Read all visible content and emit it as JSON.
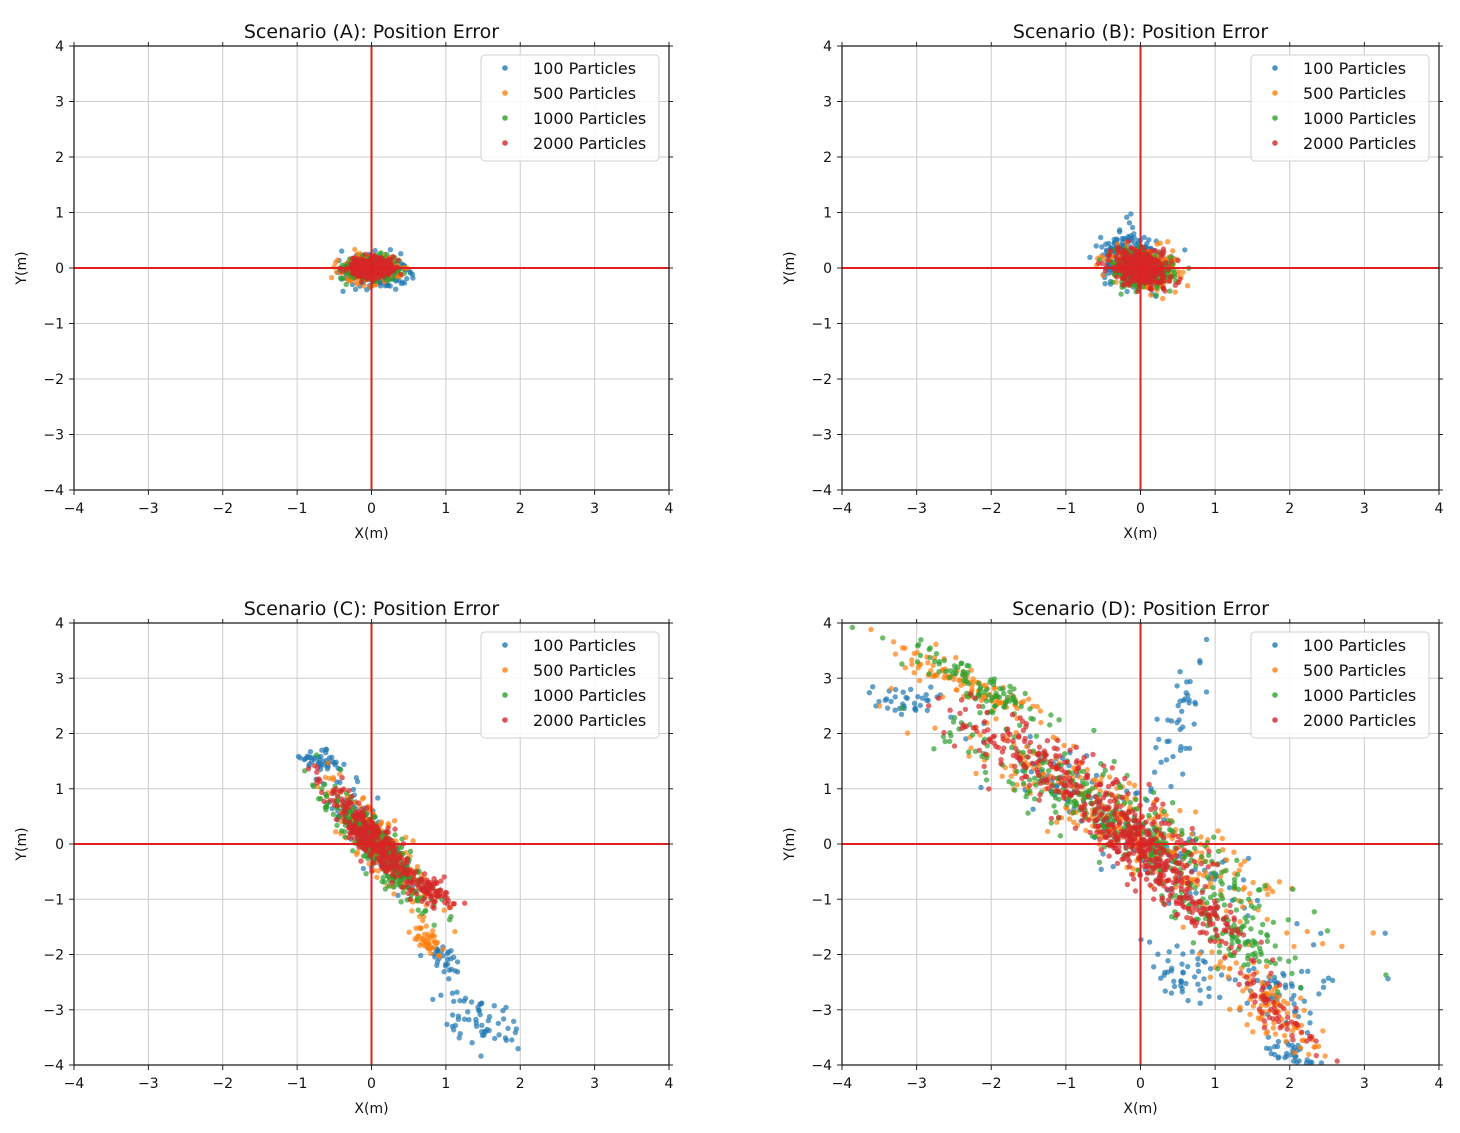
{
  "chart_data": [
    {
      "type": "scatter",
      "title": "Scenario (A): Position Error",
      "xlabel": "X(m)",
      "ylabel": "Y(m)",
      "xlim": [
        -4,
        4
      ],
      "ylim": [
        -4,
        4
      ],
      "ticks": [
        "−4",
        "−3",
        "−2",
        "−1",
        "0",
        "1",
        "2",
        "3",
        "4"
      ],
      "tick_values": [
        -4,
        -3,
        -2,
        -1,
        0,
        1,
        2,
        3,
        4
      ],
      "grid": true,
      "legend_position": "top-right",
      "reference_lines": {
        "x": 0,
        "y": 0,
        "color": "#e02020"
      },
      "series": [
        {
          "name": "100 Particles",
          "color": "#1f77b4",
          "n": 320,
          "clusters": [
            {
              "weight": 1,
              "mean": [
                0.02,
                -0.05
              ],
              "sd1": 0.2,
              "sd2": 0.13,
              "angle": 0
            }
          ]
        },
        {
          "name": "500 Particles",
          "color": "#ff7f0e",
          "n": 320,
          "clusters": [
            {
              "weight": 1,
              "mean": [
                0.0,
                0.0
              ],
              "sd1": 0.17,
              "sd2": 0.11,
              "angle": 0
            }
          ]
        },
        {
          "name": "1000 Particles",
          "color": "#2ca02c",
          "n": 320,
          "clusters": [
            {
              "weight": 1,
              "mean": [
                0.0,
                0.0
              ],
              "sd1": 0.16,
              "sd2": 0.1,
              "angle": 0
            }
          ]
        },
        {
          "name": "2000 Particles",
          "color": "#d62728",
          "n": 350,
          "clusters": [
            {
              "weight": 1,
              "mean": [
                0.0,
                0.0
              ],
              "sd1": 0.14,
              "sd2": 0.09,
              "angle": 0
            }
          ]
        }
      ]
    },
    {
      "type": "scatter",
      "title": "Scenario (B): Position Error",
      "xlabel": "X(m)",
      "ylabel": "Y(m)",
      "xlim": [
        -4,
        4
      ],
      "ylim": [
        -4,
        4
      ],
      "ticks": [
        "−4",
        "−3",
        "−2",
        "−1",
        "0",
        "1",
        "2",
        "3",
        "4"
      ],
      "tick_values": [
        -4,
        -3,
        -2,
        -1,
        0,
        1,
        2,
        3,
        4
      ],
      "grid": true,
      "legend_position": "top-right",
      "reference_lines": {
        "x": 0,
        "y": 0,
        "color": "#e02020"
      },
      "series": [
        {
          "name": "100 Particles",
          "color": "#1f77b4",
          "n": 300,
          "clusters": [
            {
              "weight": 1,
              "mean": [
                -0.1,
                0.15
              ],
              "sd1": 0.24,
              "sd2": 0.2,
              "angle": -40
            }
          ]
        },
        {
          "name": "500 Particles",
          "color": "#ff7f0e",
          "n": 300,
          "clusters": [
            {
              "weight": 1,
              "mean": [
                0.05,
                0.0
              ],
              "sd1": 0.22,
              "sd2": 0.17,
              "angle": -30
            }
          ]
        },
        {
          "name": "1000 Particles",
          "color": "#2ca02c",
          "n": 300,
          "clusters": [
            {
              "weight": 1,
              "mean": [
                0.0,
                -0.02
              ],
              "sd1": 0.2,
              "sd2": 0.16,
              "angle": -30
            }
          ]
        },
        {
          "name": "2000 Particles",
          "color": "#d62728",
          "n": 320,
          "clusters": [
            {
              "weight": 1,
              "mean": [
                0.0,
                0.0
              ],
              "sd1": 0.19,
              "sd2": 0.16,
              "angle": -40
            }
          ]
        }
      ]
    },
    {
      "type": "scatter",
      "title": "Scenario (C): Position Error",
      "xlabel": "X(m)",
      "ylabel": "Y(m)",
      "xlim": [
        -4,
        4
      ],
      "ylim": [
        -4,
        4
      ],
      "ticks": [
        "−4",
        "−3",
        "−2",
        "−1",
        "0",
        "1",
        "2",
        "3",
        "4"
      ],
      "tick_values": [
        -4,
        -3,
        -2,
        -1,
        0,
        1,
        2,
        3,
        4
      ],
      "grid": true,
      "legend_position": "top-right",
      "reference_lines": {
        "x": 0,
        "y": 0,
        "color": "#e02020"
      },
      "series": [
        {
          "name": "100 Particles",
          "color": "#1f77b4",
          "n": 300,
          "clusters": [
            {
              "weight": 0.55,
              "mean": [
                0.05,
                0.05
              ],
              "sd1": 0.55,
              "sd2": 0.12,
              "angle": -60
            },
            {
              "weight": 0.2,
              "mean": [
                1.45,
                -3.2
              ],
              "sd1": 0.33,
              "sd2": 0.22,
              "angle": -55
            },
            {
              "weight": 0.1,
              "mean": [
                0.95,
                -2.1
              ],
              "sd1": 0.2,
              "sd2": 0.1,
              "angle": -60
            },
            {
              "weight": 0.15,
              "mean": [
                -0.7,
                1.5
              ],
              "sd1": 0.17,
              "sd2": 0.09,
              "angle": -30
            }
          ]
        },
        {
          "name": "500 Particles",
          "color": "#ff7f0e",
          "n": 300,
          "clusters": [
            {
              "weight": 0.85,
              "mean": [
                0.1,
                0.0
              ],
              "sd1": 0.6,
              "sd2": 0.13,
              "angle": -60
            },
            {
              "weight": 0.15,
              "mean": [
                0.75,
                -1.75
              ],
              "sd1": 0.18,
              "sd2": 0.08,
              "angle": -60
            }
          ]
        },
        {
          "name": "1000 Particles",
          "color": "#2ca02c",
          "n": 320,
          "clusters": [
            {
              "weight": 1,
              "mean": [
                0.1,
                -0.1
              ],
              "sd1": 0.62,
              "sd2": 0.14,
              "angle": -58
            }
          ]
        },
        {
          "name": "2000 Particles",
          "color": "#d62728",
          "n": 380,
          "clusters": [
            {
              "weight": 0.8,
              "mean": [
                0.05,
                0.05
              ],
              "sd1": 0.52,
              "sd2": 0.12,
              "angle": -58
            },
            {
              "weight": 0.2,
              "mean": [
                0.8,
                -0.85
              ],
              "sd1": 0.2,
              "sd2": 0.1,
              "angle": -40
            }
          ]
        }
      ]
    },
    {
      "type": "scatter",
      "title": "Scenario (D): Position Error",
      "xlabel": "X(m)",
      "ylabel": "Y(m)",
      "xlim": [
        -4,
        4
      ],
      "ylim": [
        -4,
        4
      ],
      "ticks": [
        "−4",
        "−3",
        "−2",
        "−1",
        "0",
        "1",
        "2",
        "3",
        "4"
      ],
      "tick_values": [
        -4,
        -3,
        -2,
        -1,
        0,
        1,
        2,
        3,
        4
      ],
      "grid": true,
      "legend_position": "top-right",
      "reference_lines": {
        "x": 0,
        "y": 0,
        "color": "#e02020"
      },
      "series": [
        {
          "name": "100 Particles",
          "color": "#1f77b4",
          "n": 360,
          "clusters": [
            {
              "weight": 0.1,
              "mean": [
                -3.1,
                2.6
              ],
              "sd1": 0.25,
              "sd2": 0.15,
              "angle": -20
            },
            {
              "weight": 0.12,
              "mean": [
                0.5,
                2.3
              ],
              "sd1": 0.8,
              "sd2": 0.12,
              "angle": 80
            },
            {
              "weight": 0.4,
              "mean": [
                -0.2,
                0.3
              ],
              "sd1": 1.3,
              "sd2": 0.3,
              "angle": -40
            },
            {
              "weight": 0.13,
              "mean": [
                0.6,
                -2.4
              ],
              "sd1": 0.3,
              "sd2": 0.2,
              "angle": -45
            },
            {
              "weight": 0.15,
              "mean": [
                1.9,
                -2.6
              ],
              "sd1": 0.35,
              "sd2": 0.25,
              "angle": -50
            },
            {
              "weight": 0.1,
              "mean": [
                2.0,
                -3.8
              ],
              "sd1": 0.2,
              "sd2": 0.1,
              "angle": -30
            }
          ]
        },
        {
          "name": "500 Particles",
          "color": "#ff7f0e",
          "n": 520,
          "clusters": [
            {
              "weight": 0.2,
              "mean": [
                -2.3,
                2.9
              ],
              "sd1": 0.7,
              "sd2": 0.12,
              "angle": -35
            },
            {
              "weight": 0.6,
              "mean": [
                -0.2,
                0.4
              ],
              "sd1": 1.35,
              "sd2": 0.3,
              "angle": -40
            },
            {
              "weight": 0.2,
              "mean": [
                1.7,
                -2.9
              ],
              "sd1": 0.7,
              "sd2": 0.18,
              "angle": -50
            }
          ]
        },
        {
          "name": "1000 Particles",
          "color": "#2ca02c",
          "n": 520,
          "clusters": [
            {
              "weight": 0.18,
              "mean": [
                -2.2,
                2.9
              ],
              "sd1": 0.6,
              "sd2": 0.15,
              "angle": -35
            },
            {
              "weight": 0.62,
              "mean": [
                -0.3,
                0.4
              ],
              "sd1": 1.3,
              "sd2": 0.28,
              "angle": -40
            },
            {
              "weight": 0.2,
              "mean": [
                1.2,
                -1.6
              ],
              "sd1": 0.6,
              "sd2": 0.2,
              "angle": -45
            }
          ]
        },
        {
          "name": "2000 Particles",
          "color": "#d62728",
          "n": 650,
          "clusters": [
            {
              "weight": 0.4,
              "mean": [
                0.0,
                -0.1
              ],
              "sd1": 0.45,
              "sd2": 0.22,
              "angle": -50
            },
            {
              "weight": 0.35,
              "mean": [
                -1.2,
                1.4
              ],
              "sd1": 0.9,
              "sd2": 0.25,
              "angle": -38
            },
            {
              "weight": 0.15,
              "mean": [
                0.9,
                -1.3
              ],
              "sd1": 0.45,
              "sd2": 0.15,
              "angle": -45
            },
            {
              "weight": 0.1,
              "mean": [
                1.8,
                -2.9
              ],
              "sd1": 0.55,
              "sd2": 0.12,
              "angle": -55
            }
          ]
        }
      ]
    }
  ]
}
